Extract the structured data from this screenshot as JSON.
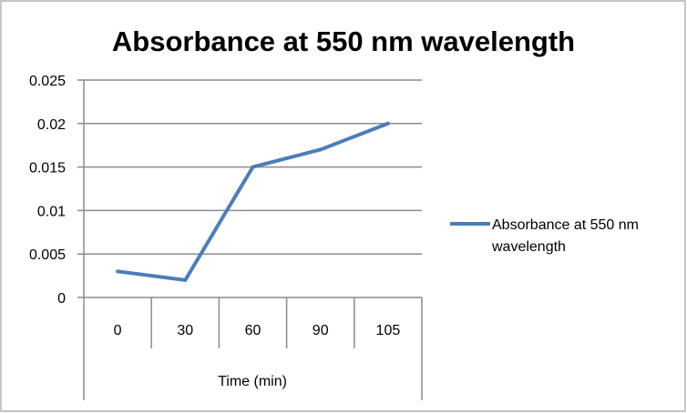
{
  "chart_data": {
    "type": "line",
    "title": "Absorbance at 550 nm wavelength",
    "xlabel": "Time (min)",
    "ylabel": "",
    "categories": [
      "0",
      "30",
      "60",
      "90",
      "105"
    ],
    "series": [
      {
        "name": "Absorbance at 550 nm wavelength",
        "legend_lines": [
          "Absorbance at 550 nm",
          "wavelength"
        ],
        "values": [
          0.003,
          0.002,
          0.015,
          0.017,
          0.02
        ],
        "color": "#4a7ebb"
      }
    ],
    "ylim": [
      0,
      0.025
    ],
    "yticks": [
      "0",
      "0.005",
      "0.01",
      "0.015",
      "0.02",
      "0.025"
    ],
    "grid": true,
    "legend": "right"
  }
}
